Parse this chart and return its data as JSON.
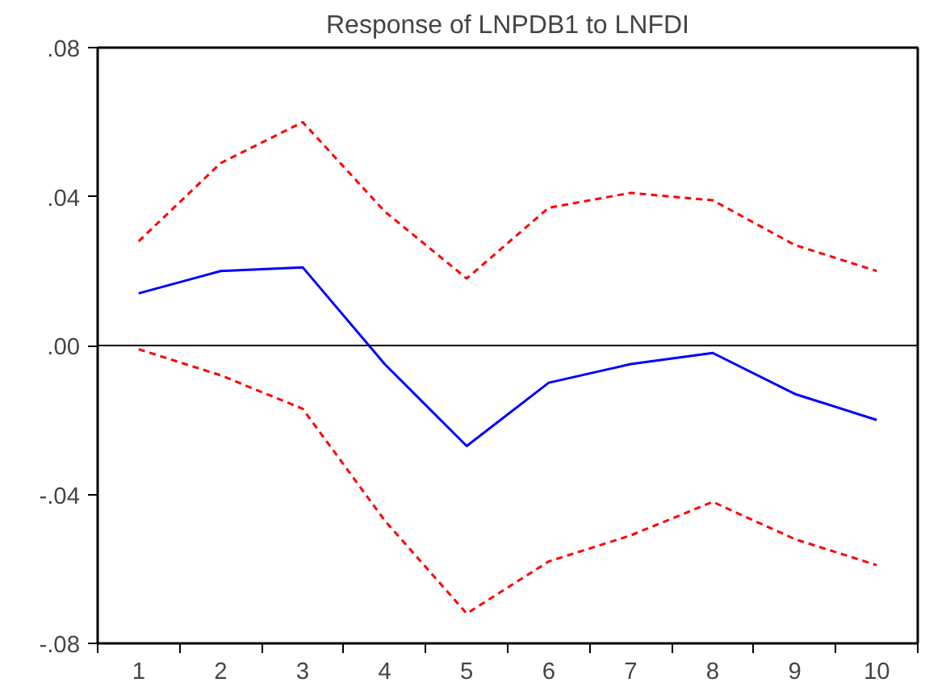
{
  "chart_data": {
    "type": "line",
    "title": "Response of LNPDB1 to LNFDI",
    "categories": [
      "1",
      "2",
      "3",
      "4",
      "5",
      "6",
      "7",
      "8",
      "9",
      "10"
    ],
    "series": [
      {
        "color": "#0000ff",
        "line_style": "solid",
        "values": [
          0.014,
          0.02,
          0.021,
          -0.005,
          -0.027,
          -0.01,
          -0.005,
          -0.002,
          -0.013,
          -0.02
        ]
      },
      {
        "color": "#ff0000",
        "line_style": "dashed",
        "values": [
          0.028,
          0.049,
          0.06,
          0.036,
          0.018,
          0.037,
          0.041,
          0.039,
          0.027,
          0.02
        ]
      },
      {
        "color": "#ff0000",
        "line_style": "dashed",
        "values": [
          -0.001,
          -0.008,
          -0.017,
          -0.047,
          -0.072,
          -0.058,
          -0.051,
          -0.042,
          -0.052,
          -0.059
        ]
      }
    ],
    "ylim": [
      -0.08,
      0.08
    ],
    "yticks": [
      {
        "value": -0.08,
        "label": "-.08"
      },
      {
        "value": -0.04,
        "label": "-.04"
      },
      {
        "value": 0,
        "label": ".00"
      },
      {
        "value": 0.04,
        "label": ".04"
      },
      {
        "value": 0.08,
        "label": ".08"
      }
    ],
    "ref_lines": [
      {
        "axis": "y",
        "value": 0,
        "color": "#000000"
      }
    ],
    "grid": false,
    "marker": "none"
  }
}
